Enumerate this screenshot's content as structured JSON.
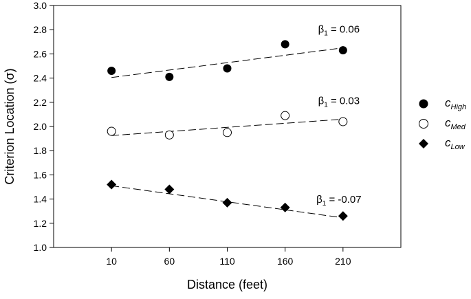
{
  "chart_data": {
    "type": "scatter",
    "xlabel": "Distance (feet)",
    "ylabel": "Criterion Location (σ)",
    "categories": [
      "10",
      "60",
      "110",
      "160",
      "210"
    ],
    "x": [
      10,
      60,
      110,
      160,
      210
    ],
    "xlim": [
      -40,
      260
    ],
    "ylim": [
      1.0,
      3.0
    ],
    "yticks": [
      "1.0",
      "1.2",
      "1.4",
      "1.6",
      "1.8",
      "2.0",
      "2.2",
      "2.4",
      "2.6",
      "2.8",
      "3.0"
    ],
    "grid": false,
    "legend_position": "right",
    "series": [
      {
        "name_main": "c",
        "name_sub": "High",
        "marker": "filled-circle",
        "values": [
          2.46,
          2.41,
          2.48,
          2.68,
          2.63
        ],
        "fit": [
          2.405,
          2.65
        ],
        "slope_label": "β",
        "slope_sub": "1",
        "slope_text": " = 0.06"
      },
      {
        "name_main": "c",
        "name_sub": "Med",
        "marker": "open-circle",
        "values": [
          1.96,
          1.93,
          1.95,
          2.09,
          2.04
        ],
        "fit": [
          1.925,
          2.06
        ],
        "slope_label": "β",
        "slope_sub": "1",
        "slope_text": " = 0.03"
      },
      {
        "name_main": "c",
        "name_sub": "Low",
        "marker": "filled-diamond",
        "values": [
          1.52,
          1.48,
          1.37,
          1.33,
          1.26
        ],
        "fit": [
          1.51,
          1.245
        ],
        "slope_label": "β",
        "slope_sub": "1",
        "slope_text": " = -0.07"
      }
    ]
  }
}
